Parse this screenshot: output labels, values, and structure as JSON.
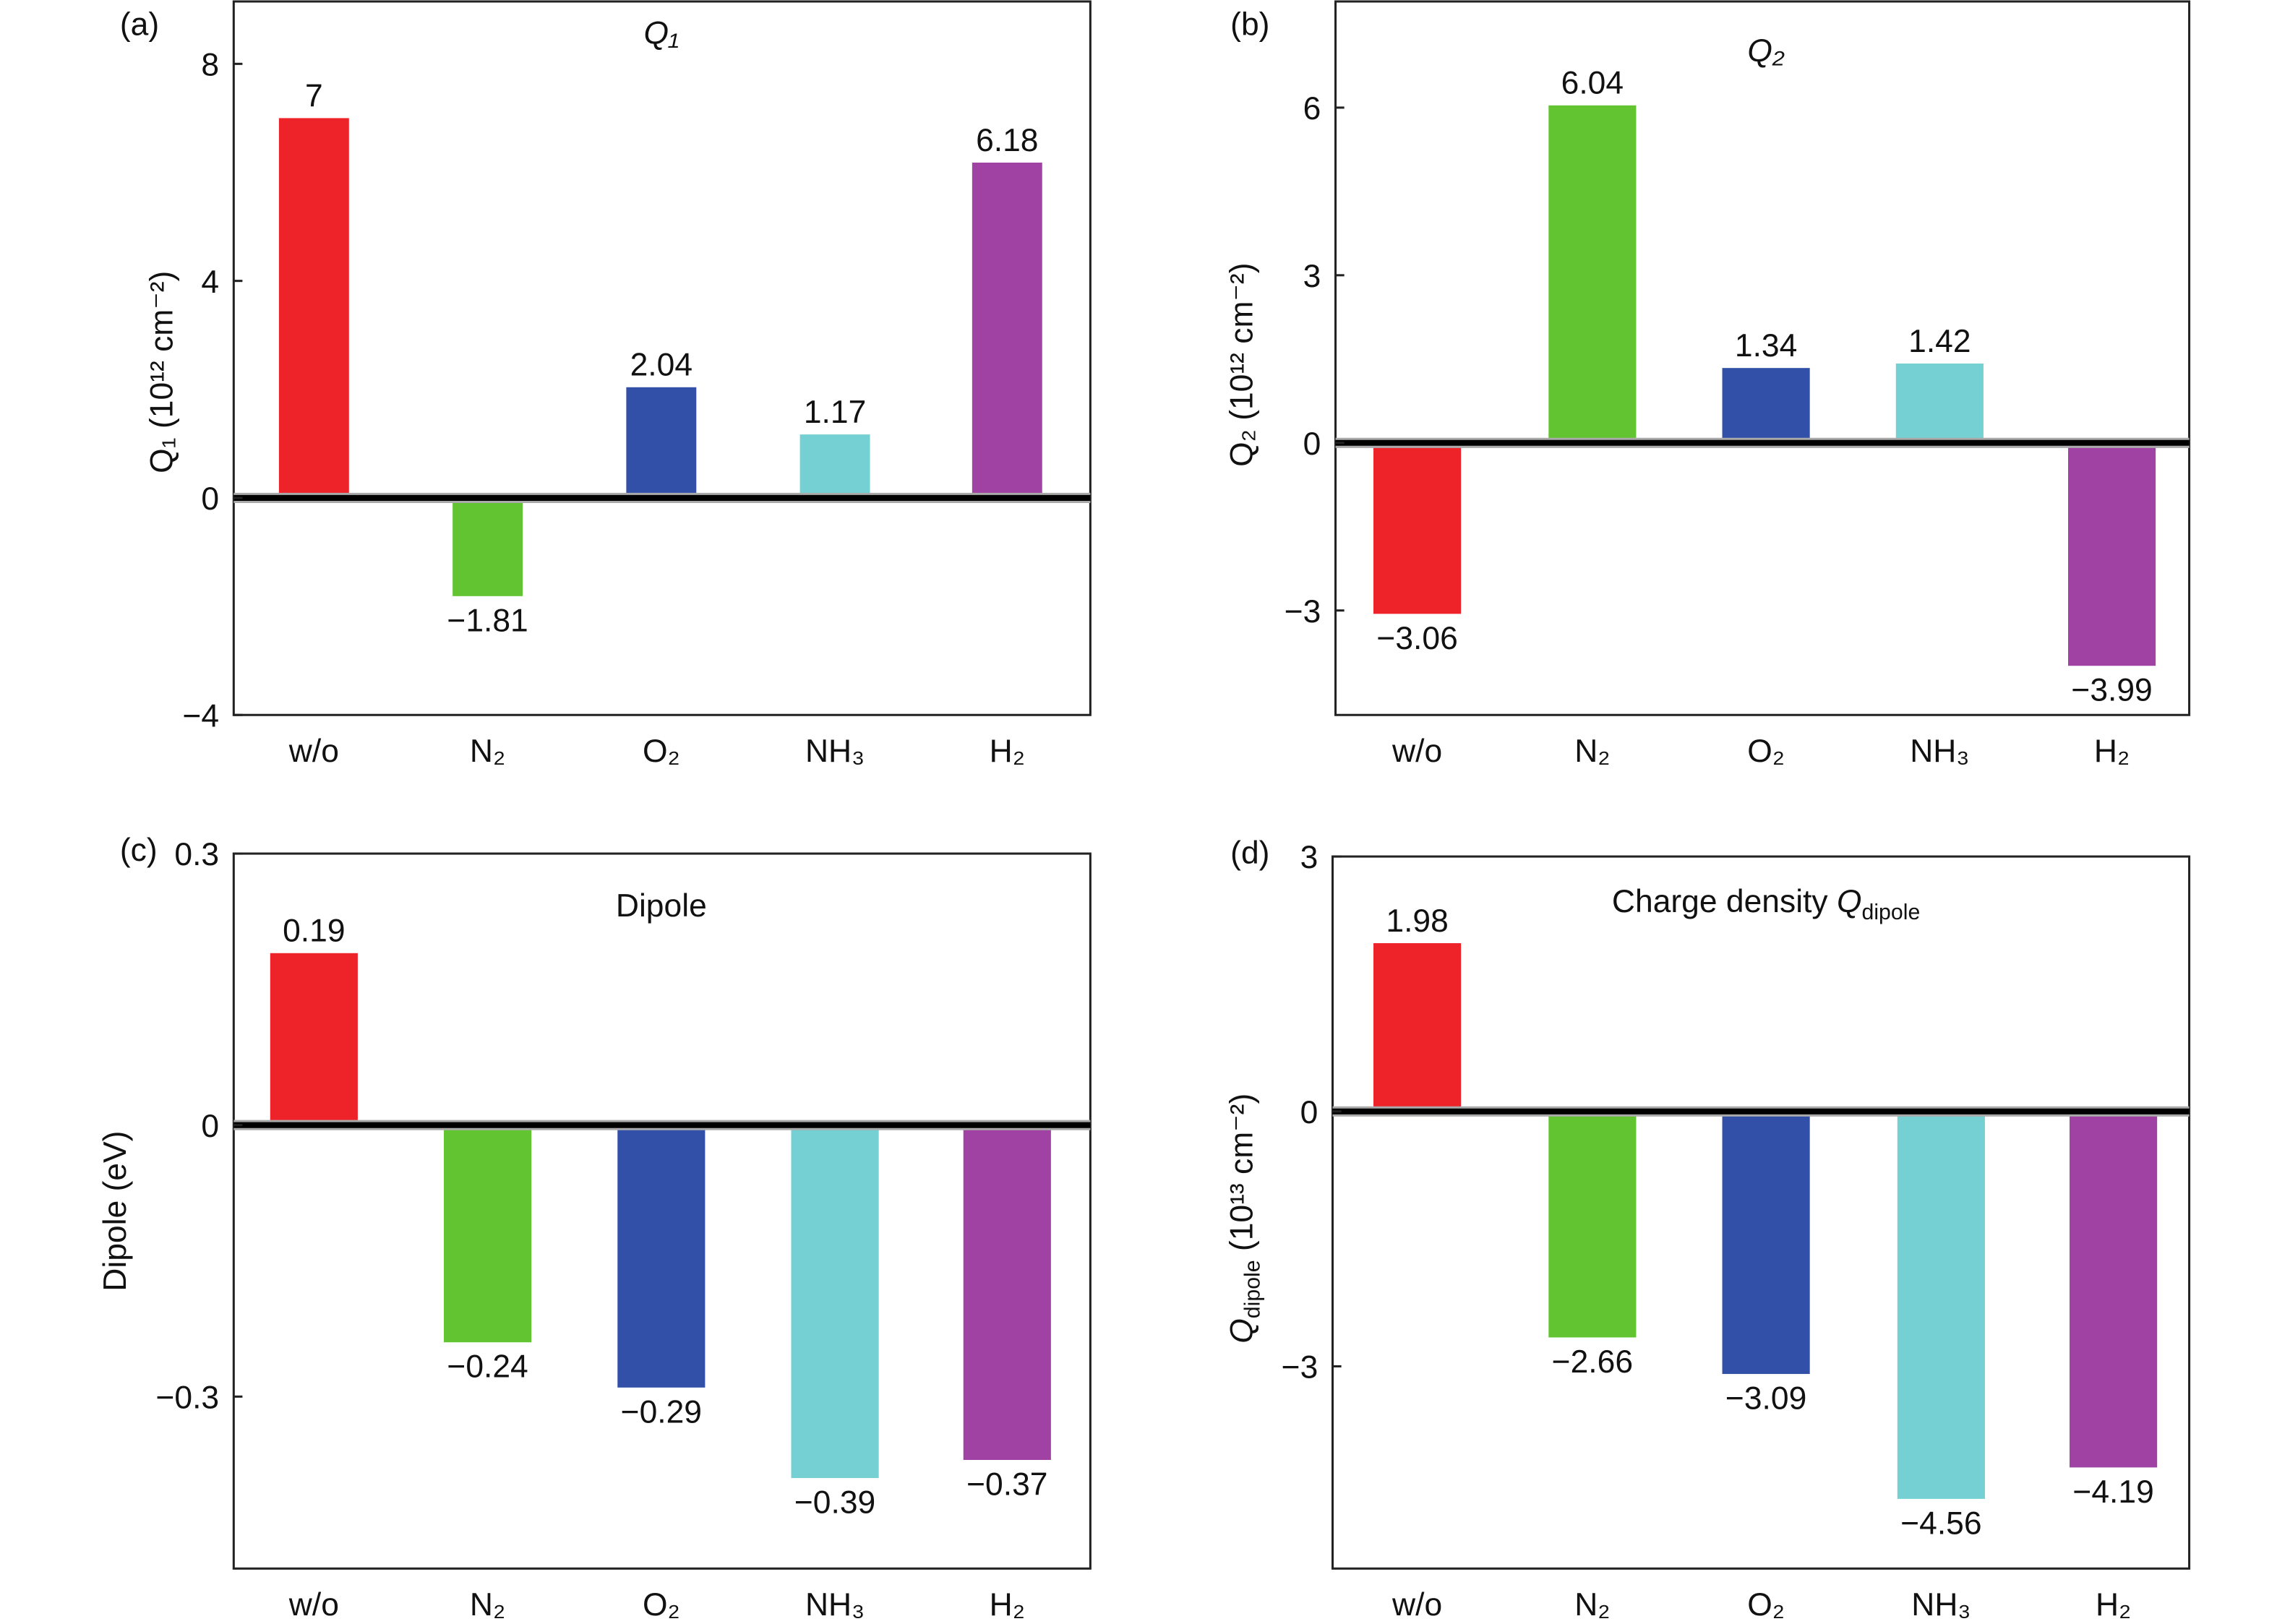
{
  "colors": {
    "w/o": "#ee2229",
    "N2": "#63c431",
    "O2": "#3350a8",
    "NH3": "#74d0d2",
    "H2": "#a042a3",
    "zero_line": "#000000"
  },
  "chart_data": [
    {
      "panel": "(a)",
      "type": "bar",
      "title": "Q₁",
      "ylabel": "Q₁ (10¹² cm⁻²)",
      "xlabel": "",
      "categories": [
        "w/o",
        "N₂",
        "O₂",
        "NH₃",
        "H₂"
      ],
      "values": [
        7,
        -1.81,
        2.04,
        1.17,
        6.18
      ],
      "value_labels": [
        "7",
        "−1.81",
        "2.04",
        "1.17",
        "6.18"
      ],
      "yticks": [
        8,
        4,
        0,
        -4
      ],
      "ytick_labels": [
        "8",
        "4",
        "0",
        "−4"
      ],
      "ylim": [
        -4,
        9.15
      ],
      "grid": false
    },
    {
      "panel": "(b)",
      "type": "bar",
      "title": "Q₂",
      "ylabel": "Q₂ (10¹² cm⁻²)",
      "xlabel": "",
      "categories": [
        "w/o",
        "N₂",
        "O₂",
        "NH₃",
        "H₂"
      ],
      "values": [
        -3.06,
        6.04,
        1.34,
        1.42,
        -3.99
      ],
      "value_labels": [
        "−3.06",
        "6.04",
        "1.34",
        "1.42",
        "−3.99"
      ],
      "yticks": [
        6,
        3,
        0,
        -3
      ],
      "ytick_labels": [
        "6",
        "3",
        "0",
        "−3"
      ],
      "ylim": [
        -4.87,
        7.9
      ],
      "grid": false
    },
    {
      "panel": "(c)",
      "type": "bar",
      "title": "Dipole",
      "ylabel": "Dipole (eV)",
      "xlabel": "",
      "categories": [
        "w/o",
        "N₂",
        "O₂",
        "NH₃",
        "H₂"
      ],
      "values": [
        0.19,
        -0.24,
        -0.29,
        -0.39,
        -0.37
      ],
      "value_labels": [
        "0.19",
        "−0.24",
        "−0.29",
        "−0.39",
        "−0.37"
      ],
      "yticks": [
        0.3,
        0,
        -0.3
      ],
      "ytick_labels": [
        "0.3",
        "0",
        "−0.3"
      ],
      "ylim": [
        -0.49,
        0.3
      ],
      "grid": false
    },
    {
      "panel": "(d)",
      "type": "bar",
      "title": "Charge density Q_dipole",
      "title_main": "Charge density ",
      "title_q": "Q",
      "title_sub": "dipole",
      "ylabel": "Q_dipole (10¹³ cm⁻²)",
      "ylabel_q": "Q",
      "ylabel_sub": "dipole",
      "ylabel_rest": " (10¹³ cm⁻²)",
      "xlabel": "",
      "categories": [
        "w/o",
        "N₂",
        "O₂",
        "NH₃",
        "H₂"
      ],
      "values": [
        1.98,
        -2.66,
        -3.09,
        -4.56,
        -4.19
      ],
      "value_labels": [
        "1.98",
        "−2.66",
        "−3.09",
        "−4.56",
        "−4.19"
      ],
      "yticks": [
        3,
        0,
        -3
      ],
      "ytick_labels": [
        "3",
        "0",
        "−3"
      ],
      "ylim": [
        -5.38,
        3
      ],
      "grid": false
    }
  ]
}
